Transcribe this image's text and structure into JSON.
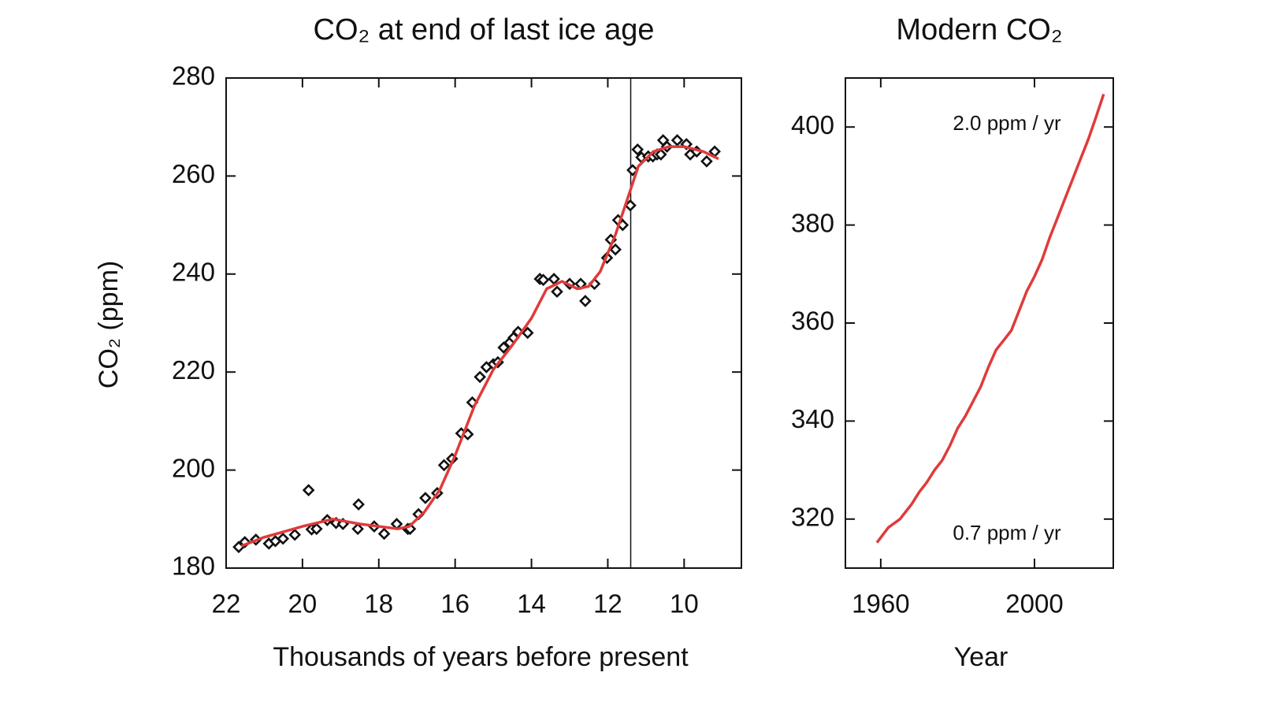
{
  "chart_data": [
    {
      "type": "scatter",
      "title": "CO₂ at end of last ice age",
      "xlabel": "Thousands of years before present",
      "ylabel": "CO₂ (ppm)",
      "x": [
        21.67,
        21.51,
        21.22,
        20.88,
        20.71,
        20.51,
        20.2,
        19.84,
        19.76,
        19.63,
        19.35,
        19.12,
        18.94,
        18.55,
        18.53,
        18.12,
        17.86,
        17.53,
        17.24,
        17.18,
        16.96,
        16.78,
        16.47,
        16.29,
        16.08,
        15.84,
        15.67,
        15.55,
        15.35,
        15.18,
        15,
        14.88,
        14.73,
        14.57,
        14.47,
        14.35,
        14.1,
        13.78,
        13.69,
        13.41,
        13.33,
        13,
        12.71,
        12.59,
        12.35,
        12.02,
        11.92,
        11.8,
        11.73,
        11.61,
        11.41,
        11.35,
        11.22,
        11.12,
        10.94,
        10.82,
        10.71,
        10.61,
        10.55,
        10.45,
        10.18,
        9.94,
        9.84,
        9.67,
        9.41,
        9.2
      ],
      "values": [
        184.3,
        185.3,
        185.8,
        185,
        185.5,
        186,
        186.8,
        195.9,
        187.9,
        188,
        189.8,
        189.2,
        189,
        188,
        193,
        188.5,
        187,
        189,
        188,
        188,
        191,
        194.3,
        195.3,
        201,
        202.3,
        207.5,
        207.3,
        213.8,
        219,
        221,
        221.6,
        222,
        225,
        226,
        227,
        228.2,
        228,
        239,
        238.8,
        239,
        236.4,
        238,
        238,
        234.5,
        238,
        243.3,
        247,
        245,
        251,
        250,
        254,
        261.2,
        265.4,
        263.8,
        264,
        264,
        264.4,
        264.4,
        267.3,
        266,
        267.3,
        266.5,
        264.4,
        265,
        263,
        265
      ],
      "color": "#111111",
      "fit_x": [
        21.6,
        21,
        20,
        19.2,
        18.5,
        17.5,
        17.2,
        16.8,
        16.4,
        16,
        15.5,
        15,
        14.5,
        14,
        13.6,
        13.2,
        12.8,
        12.5,
        12.2,
        11.8,
        11.5,
        11.2,
        10.8,
        10.4,
        10,
        9.5,
        9.1
      ],
      "fit_values": [
        184.5,
        186.3,
        188.5,
        190,
        189,
        188,
        188.5,
        191.5,
        196,
        203,
        213,
        220.5,
        225.5,
        231,
        237,
        238.5,
        237,
        237.5,
        240.5,
        248,
        255,
        262,
        265,
        266,
        266,
        265,
        263.5
      ],
      "fit_color": "#e03a3a",
      "vline": 11.4,
      "xlim": [
        22,
        8.5
      ],
      "xticks": [
        22,
        20,
        18,
        16,
        14,
        12,
        10
      ],
      "ylim": [
        180,
        280
      ],
      "yticks": [
        180,
        200,
        220,
        240,
        260,
        280
      ]
    },
    {
      "type": "line",
      "title": "Modern CO₂",
      "xlabel": "Year",
      "x": [
        1959,
        1962,
        1965,
        1968,
        1970,
        1972,
        1974,
        1976,
        1978,
        1980,
        1982,
        1984,
        1986,
        1988,
        1990,
        1992,
        1994,
        1996,
        1998,
        2000,
        2002,
        2004,
        2006,
        2008,
        2010,
        2012,
        2014,
        2016,
        2018
      ],
      "values": [
        315.2,
        318.3,
        320,
        323,
        325.5,
        327.5,
        330,
        332,
        335,
        338.5,
        341,
        344,
        347,
        351,
        354.5,
        356.5,
        358.5,
        362.5,
        366.5,
        369.5,
        373,
        377.5,
        381.5,
        385.5,
        389.5,
        393.5,
        397.5,
        402,
        406.7
      ],
      "color": "#e03a3a",
      "annotations": [
        "2.0 ppm / yr",
        "0.7 ppm / yr"
      ],
      "xlim": [
        1950.8,
        2020.5
      ],
      "xticks": [
        1960,
        2000
      ],
      "ylim": [
        310,
        410
      ],
      "yticks": [
        320,
        340,
        360,
        380,
        400
      ]
    }
  ]
}
